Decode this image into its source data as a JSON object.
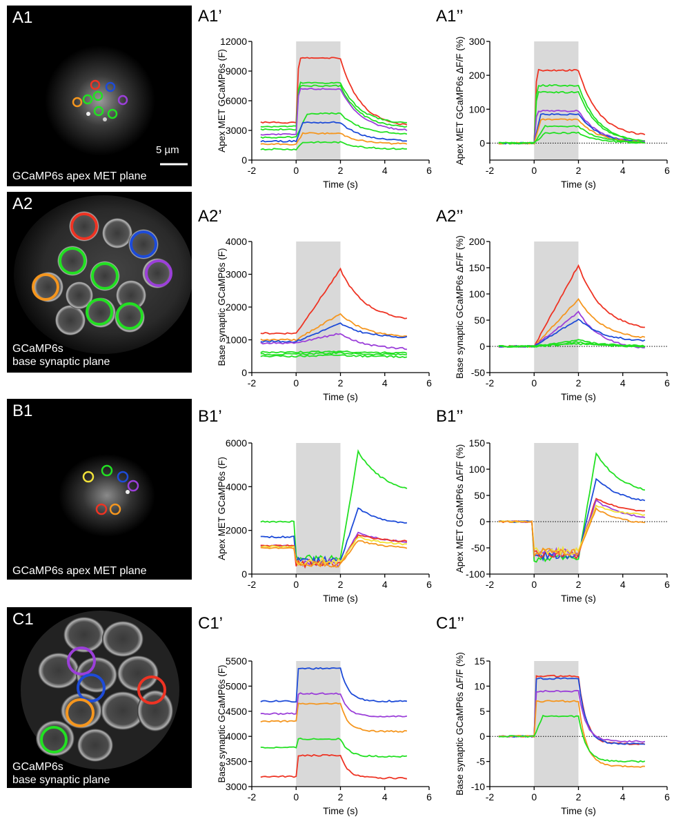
{
  "images": [
    {
      "id": "A1",
      "label": "A1",
      "caption": [
        "GCaMP6s apex MET plane"
      ],
      "scalebar": "5 µm"
    },
    {
      "id": "A2",
      "label": "A2",
      "caption": [
        "GCaMP6s",
        "base synaptic plane"
      ]
    },
    {
      "id": "B1",
      "label": "B1",
      "caption": [
        "GCaMP6s apex MET plane"
      ]
    },
    {
      "id": "C1",
      "label": "C1",
      "caption": [
        "GCaMP6s",
        "base synaptic plane"
      ]
    }
  ],
  "colors": {
    "red": "#ee3323",
    "green": "#22e022",
    "blue": "#1d4bd8",
    "purple": "#9b3fd9",
    "orange": "#f5961e",
    "yellow": "#f2e23a",
    "stim": "#d9d9d9"
  },
  "chart_data": [
    {
      "id": "A1p",
      "label": "A1’",
      "type": "line",
      "ylabel": "Apex MET GCaMP6s (F)",
      "xlabel": "Time (s)",
      "xlim": [
        -2,
        6
      ],
      "xticks": [
        -2,
        0,
        2,
        4,
        6
      ],
      "ylim": [
        0,
        12000
      ],
      "yticks": [
        0,
        3000,
        6000,
        9000,
        12000
      ],
      "stimulus": [
        0,
        2
      ],
      "zeroline": false,
      "series": [
        {
          "name": "red",
          "color": "red",
          "pre": 3800,
          "peak": 10300,
          "post_end": 3300,
          "rise": 0.12
        },
        {
          "name": "green",
          "color": "green",
          "pre": 3400,
          "peak": 7800,
          "post_end": 3600,
          "rise": 0.12
        },
        {
          "name": "green",
          "color": "green",
          "pre": 3100,
          "peak": 7500,
          "post_end": 3200,
          "rise": 0.12
        },
        {
          "name": "purple",
          "color": "purple",
          "pre": 2600,
          "peak": 7200,
          "post_end": 2900,
          "rise": 0.12
        },
        {
          "name": "green",
          "color": "green",
          "pre": 2300,
          "peak": 4700,
          "post_end": 2600,
          "rise": 0.5
        },
        {
          "name": "blue",
          "color": "blue",
          "pre": 1900,
          "peak": 3800,
          "post_end": 1900,
          "rise": 0.3
        },
        {
          "name": "orange",
          "color": "orange",
          "pre": 1600,
          "peak": 2700,
          "post_end": 1600,
          "rise": 0.3
        },
        {
          "name": "green",
          "color": "green",
          "pre": 1100,
          "peak": 1800,
          "post_end": 1100,
          "rise": 0.3
        }
      ]
    },
    {
      "id": "A1pp",
      "label": "A1’’",
      "type": "line",
      "ylabel": "Apex MET GCaMP6s ΔF/F (%)",
      "xlabel": "Time (s)",
      "xlim": [
        -2,
        6
      ],
      "xticks": [
        -2,
        0,
        2,
        4,
        6
      ],
      "ylim": [
        -50,
        300
      ],
      "yticks": [
        0,
        100,
        200,
        300
      ],
      "stimulus": [
        0,
        2
      ],
      "zeroline": true,
      "series": [
        {
          "name": "red",
          "color": "red",
          "pre": 0,
          "peak": 215,
          "post_end": 18,
          "rise": 0.12
        },
        {
          "name": "green",
          "color": "green",
          "pre": 0,
          "peak": 170,
          "post_end": 0,
          "rise": 0.12
        },
        {
          "name": "green",
          "color": "green",
          "pre": 0,
          "peak": 150,
          "post_end": 0,
          "rise": 0.12
        },
        {
          "name": "purple",
          "color": "purple",
          "pre": 0,
          "peak": 95,
          "post_end": 0,
          "rise": 0.12
        },
        {
          "name": "blue",
          "color": "blue",
          "pre": 0,
          "peak": 85,
          "post_end": 0,
          "rise": 0.3
        },
        {
          "name": "orange",
          "color": "orange",
          "pre": 0,
          "peak": 70,
          "post_end": 0,
          "rise": 0.3
        },
        {
          "name": "green",
          "color": "green",
          "pre": 0,
          "peak": 50,
          "post_end": 0,
          "rise": 0.5
        },
        {
          "name": "green",
          "color": "green",
          "pre": 0,
          "peak": 30,
          "post_end": 0,
          "rise": 0.5
        }
      ]
    },
    {
      "id": "A2p",
      "label": "A2’",
      "type": "line",
      "ylabel": "Base synaptic GCaMP6s (F)",
      "xlabel": "Time (s)",
      "xlim": [
        -2,
        6
      ],
      "xticks": [
        -2,
        0,
        2,
        4,
        6
      ],
      "ylim": [
        0,
        4000
      ],
      "yticks": [
        0,
        1000,
        2000,
        3000,
        4000
      ],
      "stimulus": [
        0,
        2
      ],
      "zeroline": false,
      "series": [
        {
          "name": "red",
          "color": "red",
          "pre": 1200,
          "peak": 3150,
          "post_end": 1550,
          "rise": 2.0,
          "ramp": true
        },
        {
          "name": "orange",
          "color": "orange",
          "pre": 1000,
          "peak": 1800,
          "post_end": 1050,
          "rise": 2.0,
          "ramp": true
        },
        {
          "name": "blue",
          "color": "blue",
          "pre": 950,
          "peak": 1500,
          "post_end": 1050,
          "rise": 2.0,
          "ramp": true
        },
        {
          "name": "purple",
          "color": "purple",
          "pre": 900,
          "peak": 1200,
          "post_end": 700,
          "rise": 2.0,
          "ramp": true
        },
        {
          "name": "green",
          "color": "green",
          "pre": 620,
          "peak": 650,
          "post_end": 600,
          "rise": 2.0,
          "ramp": true
        },
        {
          "name": "green",
          "color": "green",
          "pre": 560,
          "peak": 600,
          "post_end": 550,
          "rise": 2.0,
          "ramp": true
        },
        {
          "name": "green",
          "color": "green",
          "pre": 500,
          "peak": 540,
          "post_end": 480,
          "rise": 2.0,
          "ramp": true
        }
      ]
    },
    {
      "id": "A2pp",
      "label": "A2’’",
      "type": "line",
      "ylabel": "Base synaptic GCaMP6s ΔF/F (%)",
      "xlabel": "Time (s)",
      "xlim": [
        -2,
        6
      ],
      "xticks": [
        -2,
        0,
        2,
        4,
        6
      ],
      "ylim": [
        -50,
        200
      ],
      "yticks": [
        -50,
        0,
        50,
        100,
        150,
        200
      ],
      "stimulus": [
        0,
        2
      ],
      "zeroline": true,
      "series": [
        {
          "name": "red",
          "color": "red",
          "pre": 0,
          "peak": 155,
          "post_end": 28,
          "rise": 2.0,
          "ramp": true
        },
        {
          "name": "orange",
          "color": "orange",
          "pre": 0,
          "peak": 90,
          "post_end": 12,
          "rise": 2.0,
          "ramp": true
        },
        {
          "name": "purple",
          "color": "purple",
          "pre": 0,
          "peak": 65,
          "post_end": -8,
          "rise": 2.0,
          "ramp": true
        },
        {
          "name": "blue",
          "color": "blue",
          "pre": 0,
          "peak": 52,
          "post_end": 8,
          "rise": 2.0,
          "ramp": true
        },
        {
          "name": "green",
          "color": "green",
          "pre": 0,
          "peak": 12,
          "post_end": 0,
          "rise": 2.0,
          "ramp": true
        },
        {
          "name": "green",
          "color": "green",
          "pre": 0,
          "peak": 8,
          "post_end": 0,
          "rise": 2.0,
          "ramp": true
        },
        {
          "name": "green",
          "color": "green",
          "pre": 0,
          "peak": 5,
          "post_end": 0,
          "rise": 2.0,
          "ramp": true
        }
      ]
    },
    {
      "id": "B1p",
      "label": "B1’",
      "type": "line",
      "ylabel": "Apex MET GCaMP6s (F)",
      "xlabel": "Time (s)",
      "xlim": [
        -2,
        6
      ],
      "xticks": [
        -2,
        0,
        2,
        4,
        6
      ],
      "ylim": [
        0,
        6000
      ],
      "yticks": [
        0,
        2000,
        4000,
        6000
      ],
      "stimulus": [
        0,
        2
      ],
      "zeroline": false,
      "series": [
        {
          "name": "green",
          "color": "green",
          "pre": 2400,
          "dip": 700,
          "overshoot": 5600,
          "post_end": 3600
        },
        {
          "name": "blue",
          "color": "blue",
          "pre": 1700,
          "dip": 600,
          "overshoot": 3000,
          "post_end": 2200
        },
        {
          "name": "purple",
          "color": "purple",
          "pre": 1300,
          "dip": 500,
          "overshoot": 1900,
          "post_end": 1400
        },
        {
          "name": "red",
          "color": "red",
          "pre": 1300,
          "dip": 500,
          "overshoot": 1800,
          "post_end": 1450
        },
        {
          "name": "yellow",
          "color": "yellow",
          "pre": 1250,
          "dip": 550,
          "overshoot": 1700,
          "post_end": 1300
        },
        {
          "name": "orange",
          "color": "orange",
          "pre": 1200,
          "dip": 450,
          "overshoot": 1550,
          "post_end": 1150
        }
      ]
    },
    {
      "id": "B1pp",
      "label": "B1’’",
      "type": "line",
      "ylabel": "Apex MET GCaMP6s ΔF/F (%)",
      "xlabel": "Time (s)",
      "xlim": [
        -2,
        6
      ],
      "xticks": [
        -2,
        0,
        2,
        4,
        6
      ],
      "ylim": [
        -100,
        150
      ],
      "yticks": [
        -100,
        -50,
        0,
        50,
        100,
        150
      ],
      "stimulus": [
        0,
        2
      ],
      "zeroline": true,
      "series": [
        {
          "name": "green",
          "color": "green",
          "pre": 0,
          "dip": -70,
          "overshoot": 130,
          "post_end": 48
        },
        {
          "name": "blue",
          "color": "blue",
          "pre": 0,
          "dip": -65,
          "overshoot": 82,
          "post_end": 32
        },
        {
          "name": "red",
          "color": "red",
          "pre": 0,
          "dip": -62,
          "overshoot": 45,
          "post_end": 15
        },
        {
          "name": "purple",
          "color": "purple",
          "pre": 0,
          "dip": -60,
          "overshoot": 40,
          "post_end": 3
        },
        {
          "name": "yellow",
          "color": "yellow",
          "pre": 0,
          "dip": -55,
          "overshoot": 30,
          "post_end": 10
        },
        {
          "name": "orange",
          "color": "orange",
          "pre": 0,
          "dip": -58,
          "overshoot": 25,
          "post_end": -8
        }
      ]
    },
    {
      "id": "C1p",
      "label": "C1’",
      "type": "line",
      "ylabel": "Base synaptic GCaMP6s (F)",
      "xlabel": "Time (s)",
      "xlim": [
        -2,
        6
      ],
      "xticks": [
        -2,
        0,
        2,
        4,
        6
      ],
      "ylim": [
        3000,
        5500
      ],
      "yticks": [
        3000,
        3500,
        4000,
        4500,
        5000,
        5500
      ],
      "stimulus": [
        0,
        2
      ],
      "zeroline": false,
      "series": [
        {
          "name": "blue",
          "color": "blue",
          "pre": 4700,
          "peak": 5350,
          "post_end": 4700,
          "rise": 0.1,
          "fast": true
        },
        {
          "name": "purple",
          "color": "purple",
          "pre": 4450,
          "peak": 4850,
          "post_end": 4400,
          "rise": 0.1,
          "fast": true
        },
        {
          "name": "orange",
          "color": "orange",
          "pre": 4300,
          "peak": 4650,
          "post_end": 4100,
          "rise": 0.1,
          "fast": true
        },
        {
          "name": "green",
          "color": "green",
          "pre": 3780,
          "peak": 3950,
          "post_end": 3600,
          "rise": 0.1,
          "fast": true
        },
        {
          "name": "red",
          "color": "red",
          "pre": 3200,
          "peak": 3620,
          "post_end": 3170,
          "rise": 0.1,
          "fast": true
        }
      ]
    },
    {
      "id": "C1pp",
      "label": "C1’’",
      "type": "line",
      "ylabel": "Base synaptic GCaMP6s ΔF/F (%)",
      "xlabel": "Time (s)",
      "xlim": [
        -2,
        6
      ],
      "xticks": [
        -2,
        0,
        2,
        4,
        6
      ],
      "ylim": [
        -10,
        15
      ],
      "yticks": [
        -10,
        -5,
        0,
        5,
        10,
        15
      ],
      "stimulus": [
        0,
        2
      ],
      "zeroline": true,
      "series": [
        {
          "name": "red",
          "color": "red",
          "pre": 0,
          "peak": 12,
          "post_end": -1.5,
          "rise": 0.1,
          "fast": true
        },
        {
          "name": "blue",
          "color": "blue",
          "pre": 0,
          "peak": 11.5,
          "post_end": -1.5,
          "rise": 0.1,
          "fast": true
        },
        {
          "name": "purple",
          "color": "purple",
          "pre": 0,
          "peak": 9,
          "post_end": -1,
          "rise": 0.1,
          "fast": true
        },
        {
          "name": "orange",
          "color": "orange",
          "pre": 0,
          "peak": 7,
          "post_end": -6,
          "rise": 0.1,
          "fast": true
        },
        {
          "name": "green",
          "color": "green",
          "pre": 0,
          "peak": 4,
          "post_end": -5,
          "rise": 0.4,
          "fast": true
        }
      ]
    }
  ]
}
